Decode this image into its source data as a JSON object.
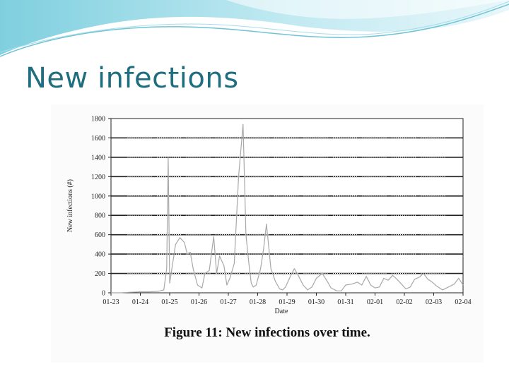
{
  "slide": {
    "title": "New infections",
    "accent_color": "#1f6e80"
  },
  "figure": {
    "caption": "Figure 11:  New infections over time."
  },
  "chart_data": {
    "type": "line",
    "title": "",
    "xlabel": "Date",
    "ylabel": "New infections (#)",
    "ylim": [
      0,
      1800
    ],
    "yticks": [
      0,
      200,
      400,
      600,
      800,
      1000,
      1200,
      1400,
      1600,
      1800
    ],
    "xlim": [
      0,
      12
    ],
    "xtick_labels": [
      "01-23",
      "01-24",
      "01-25",
      "01-26",
      "01-27",
      "01-28",
      "01-29",
      "01-30",
      "01-31",
      "02-01",
      "02-02",
      "02-03",
      "02-04"
    ],
    "grid": "horizontal",
    "line_color": "#a8a8a8",
    "series": [
      {
        "name": "",
        "x": [
          0,
          0.3,
          0.6,
          1.0,
          1.3,
          1.6,
          1.8,
          1.9,
          1.95,
          2.0,
          2.1,
          2.2,
          2.35,
          2.5,
          2.6,
          2.7,
          2.8,
          2.95,
          3.1,
          3.2,
          3.35,
          3.5,
          3.6,
          3.7,
          3.85,
          3.95,
          4.05,
          4.2,
          4.35,
          4.5,
          4.6,
          4.7,
          4.78,
          4.85,
          4.95,
          5.1,
          5.2,
          5.3,
          5.45,
          5.6,
          5.75,
          5.85,
          5.95,
          6.1,
          6.25,
          6.4,
          6.55,
          6.7,
          6.85,
          7.0,
          7.2,
          7.35,
          7.5,
          7.7,
          7.85,
          8.0,
          8.2,
          8.4,
          8.55,
          8.7,
          8.85,
          9.0,
          9.15,
          9.3,
          9.45,
          9.6,
          9.75,
          9.9,
          10.05,
          10.2,
          10.35,
          10.5,
          10.65,
          10.8,
          10.95,
          11.1,
          11.3,
          11.5,
          11.7,
          11.85,
          12.0
        ],
        "y": [
          0,
          0,
          5,
          10,
          10,
          15,
          30,
          250,
          1400,
          100,
          300,
          500,
          570,
          520,
          400,
          420,
          250,
          80,
          50,
          200,
          230,
          580,
          200,
          380,
          280,
          80,
          150,
          300,
          1200,
          1740,
          600,
          300,
          100,
          60,
          80,
          250,
          450,
          710,
          250,
          120,
          40,
          30,
          60,
          160,
          250,
          170,
          80,
          30,
          60,
          150,
          200,
          130,
          50,
          20,
          20,
          80,
          90,
          110,
          80,
          170,
          80,
          50,
          60,
          150,
          130,
          180,
          140,
          90,
          40,
          60,
          140,
          160,
          200,
          140,
          110,
          70,
          30,
          60,
          90,
          150,
          80
        ]
      }
    ]
  }
}
